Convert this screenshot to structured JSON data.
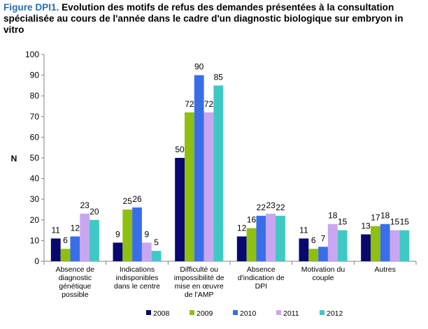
{
  "figure": {
    "label": "Figure DPI1.",
    "title": "Evolution des motifs de refus des demandes présentées à la consultation spécialisée au cours de l'année dans le cadre d'un diagnostic biologique sur embryon in vitro",
    "label_color": "#2a6db5"
  },
  "chart_data": {
    "type": "bar",
    "ylabel": "N",
    "xlabel": "",
    "ylim": [
      0,
      100
    ],
    "yticks": [
      0,
      10,
      20,
      30,
      40,
      50,
      60,
      70,
      80,
      90,
      100
    ],
    "grid": false,
    "legend_position": "bottom",
    "categories": [
      [
        "Absence de",
        "diagnostic",
        "génétique",
        "possible"
      ],
      [
        "Indications",
        "indisponibles",
        "dans le centre"
      ],
      [
        "Difficulté ou",
        "impossibilité de",
        "mise en œuvre",
        "de l'AMP"
      ],
      [
        "Absence",
        "d'indication de",
        "DPI"
      ],
      [
        "Motivation du",
        "couple"
      ],
      [
        "Autres"
      ]
    ],
    "series": [
      {
        "name": "2008",
        "color": "#08086e",
        "values": [
          11,
          9,
          50,
          12,
          11,
          13
        ]
      },
      {
        "name": "2009",
        "color": "#8fbf10",
        "values": [
          6,
          25,
          72,
          16,
          6,
          17
        ]
      },
      {
        "name": "2010",
        "color": "#3a6ee8",
        "values": [
          12,
          26,
          90,
          22,
          7,
          18
        ]
      },
      {
        "name": "2011",
        "color": "#c9a6f2",
        "values": [
          23,
          9,
          72,
          23,
          18,
          15
        ]
      },
      {
        "name": "2012",
        "color": "#3ec9c4",
        "values": [
          20,
          5,
          85,
          22,
          15,
          15
        ]
      }
    ]
  }
}
